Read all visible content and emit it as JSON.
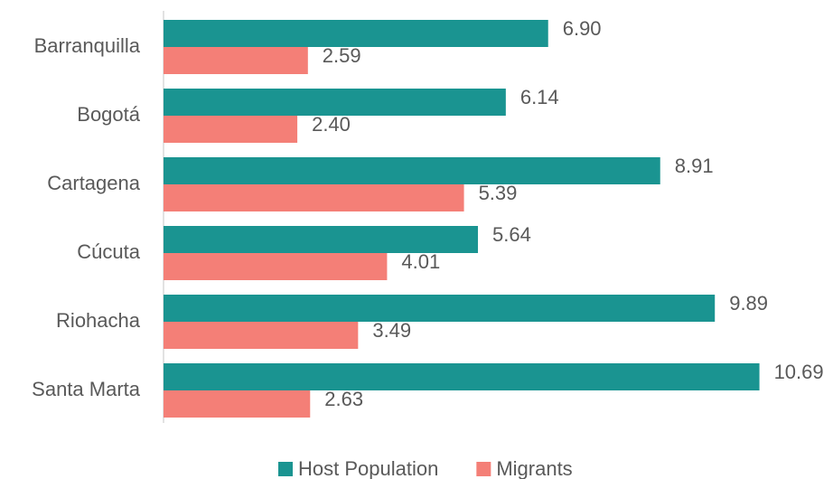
{
  "chart_data": {
    "type": "hbar",
    "categories": [
      "Barranquilla",
      "Bogotá",
      "Cartagena",
      "Cúcuta",
      "Riohacha",
      "Santa Marta"
    ],
    "series": [
      {
        "name": "Host Population",
        "color": "#1a9491",
        "values": [
          6.9,
          6.14,
          8.91,
          5.64,
          9.89,
          10.69
        ],
        "value_labels": [
          "6.90",
          "6.14",
          "8.91",
          "5.64",
          "9.89",
          "10.69"
        ]
      },
      {
        "name": "Migrants",
        "color": "#f47f77",
        "values": [
          2.59,
          2.4,
          5.39,
          4.01,
          3.49,
          2.63
        ],
        "value_labels": [
          "2.59",
          "2.40",
          "5.39",
          "4.01",
          "3.49",
          "2.63"
        ]
      }
    ],
    "legend": "bottom"
  }
}
